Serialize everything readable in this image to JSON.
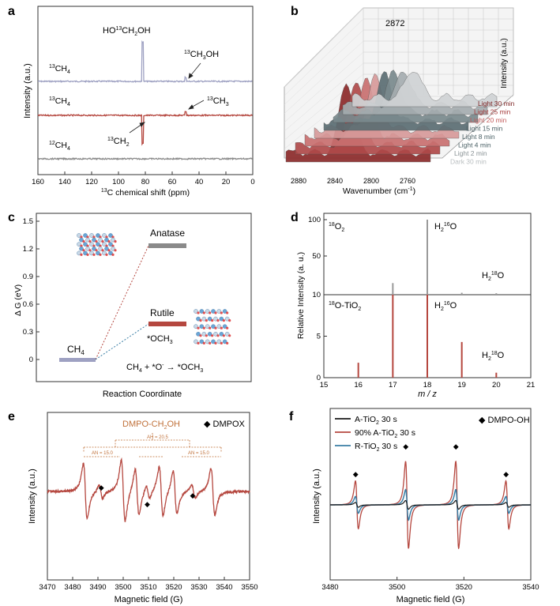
{
  "colors": {
    "gray": "#8a8a8a",
    "red": "#b5473f",
    "lavender": "#9ea1c2",
    "blue": "#3a7ea5",
    "black": "#1a1a1a",
    "dark": "#333333"
  },
  "chart_data": [
    {
      "panel": "a",
      "type": "line",
      "xlabel": "13C chemical shift (ppm)",
      "ylabel": "Intensity (a.u.)",
      "xlim": [
        160,
        0
      ],
      "x_ticks": [
        "160",
        "140",
        "120",
        "100",
        "80",
        "60",
        "40",
        "20",
        "0"
      ],
      "series": [
        {
          "name": "13CH4",
          "color": "#9ea1c2",
          "peaks": [
            {
              "x": 82,
              "height": "positive large",
              "label": "HO13CH2OH"
            },
            {
              "x": 50,
              "height": "positive small",
              "label": "13CH3OH"
            }
          ]
        },
        {
          "name": "13CH4",
          "color": "#b5473f",
          "peaks": [
            {
              "x": 50,
              "height": "positive small",
              "label": "13CH3"
            },
            {
              "x": 82,
              "height": "negative large",
              "label": "13CH2"
            }
          ]
        },
        {
          "name": "12CH4",
          "color": "#8a8a8a",
          "peaks": []
        }
      ]
    },
    {
      "panel": "b",
      "type": "area",
      "xlabel": "Wavenumber (cm-1)",
      "zlabel": "Intensity (a.u.)",
      "x_ticks": [
        "2880",
        "2840",
        "2800",
        "2760"
      ],
      "peak_label": "2872",
      "series": [
        "Light 30 min",
        "Light 25 min",
        "Light 20 min",
        "Light 15 min",
        "Light 8 min",
        "Light 4 min",
        "Light 2 min",
        "Dark 30 min"
      ]
    },
    {
      "panel": "c",
      "type": "diagram",
      "xlabel": "Reaction Coordinate",
      "ylabel": "Δ G (eV)",
      "ylim": [
        0,
        1.5
      ],
      "y_ticks": [
        "0",
        "0.3",
        "0.6",
        "0.9",
        "1.2",
        "1.5"
      ],
      "levels": [
        {
          "label": "CH4",
          "value": 0
        },
        {
          "label": "Anatase",
          "value": 1.2
        },
        {
          "label": "Rutile",
          "value": 0.45
        },
        {
          "label": "*OCH3",
          "value": 0.45
        }
      ],
      "equation": "CH4 + *O- → *OCH3"
    },
    {
      "panel": "d",
      "type": "bar",
      "xlabel": "m / z",
      "ylabel": "Relative Intensity (a. u.)",
      "xlim": [
        15,
        21
      ],
      "x_ticks": [
        "15",
        "16",
        "17",
        "18",
        "19",
        "20",
        "21"
      ],
      "top": {
        "label": "18O2",
        "ylim": [
          0,
          100
        ],
        "y_ticks": [
          "10",
          "50",
          "100"
        ],
        "bars": [
          {
            "x": 17,
            "value": 22
          },
          {
            "x": 18,
            "value": 100
          },
          {
            "x": 19,
            "value": 12
          },
          {
            "x": 20,
            "value": 11.5
          }
        ]
      },
      "bottom": {
        "label": "18O-TiO2",
        "ylim": [
          0,
          10
        ],
        "y_ticks": [
          "0",
          "5",
          "10"
        ],
        "bars": [
          {
            "x": 16,
            "value": 1.8
          },
          {
            "x": 17,
            "value": 10
          },
          {
            "x": 18,
            "value": 10
          },
          {
            "x": 19,
            "value": 4.3
          },
          {
            "x": 20,
            "value": 0.6
          }
        ]
      },
      "annotations": [
        "H216O",
        "H218O",
        "H216O",
        "H218O"
      ]
    },
    {
      "panel": "e",
      "type": "line",
      "xlabel": "Magnetic field (G)",
      "ylabel": "Intensity (a.u.)",
      "xlim": [
        3470,
        3550
      ],
      "x_ticks": [
        "3470",
        "3480",
        "3490",
        "3500",
        "3510",
        "3520",
        "3530",
        "3540",
        "3550"
      ],
      "legend": "DMPOX",
      "adduct": "DMPO-CH2OH",
      "coupling": {
        "aH": "AH = 20.5",
        "aN1": "AN = 15.0",
        "aN2": "AN = 15.0"
      }
    },
    {
      "panel": "f",
      "type": "line",
      "xlabel": "Magnetic field (G)",
      "ylabel": "Intensity (a.u.)",
      "xlim": [
        3480,
        3540
      ],
      "x_ticks": [
        "3480",
        "3500",
        "3520",
        "3540"
      ],
      "legend_tag": "DMPO-OH",
      "series": [
        {
          "name": "A-TiO2 30 s",
          "color": "#1a1a1a",
          "amplitude": 0.1
        },
        {
          "name": "90% A-TiO2 30 s",
          "color": "#b5473f",
          "amplitude": 1.0
        },
        {
          "name": "R-TiO2 30 s",
          "color": "#3a7ea5",
          "amplitude": 0.35
        }
      ],
      "centers": [
        3488,
        3503,
        3518,
        3533
      ]
    }
  ],
  "text": {
    "panel_a": "a",
    "panel_b": "b",
    "panel_c": "c",
    "panel_d": "d",
    "panel_e": "e",
    "panel_f": "f"
  }
}
